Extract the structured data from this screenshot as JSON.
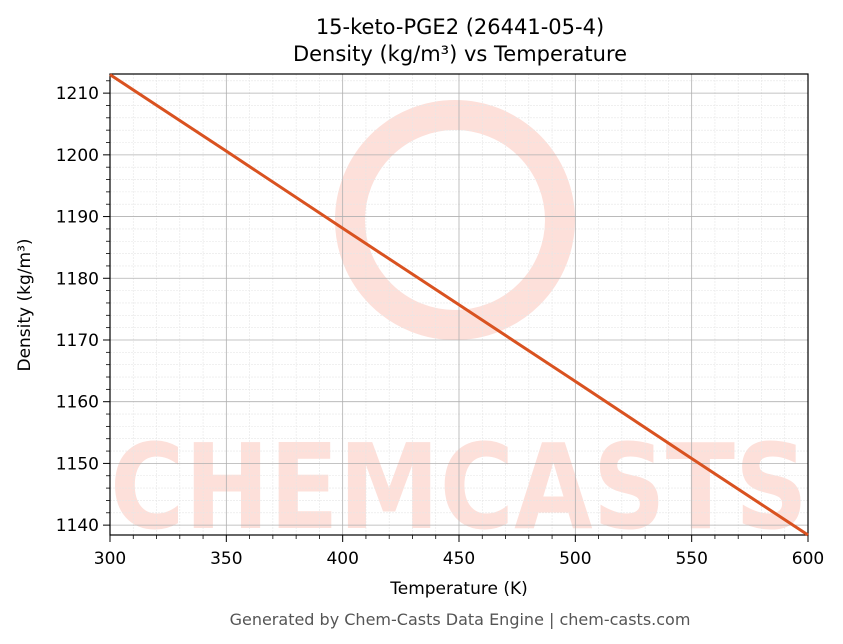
{
  "chart_data": {
    "type": "line",
    "title": "15-keto-PGE2 (26441-05-4)",
    "subtitle": "Density (kg/m³) vs Temperature",
    "x_label": "Temperature (K)",
    "y_label": "Density (kg/m³)",
    "footer": "Generated by Chem-Casts Data Engine | chem-casts.com",
    "watermark": "CHEMCASTS",
    "x": [
      300,
      350,
      400,
      450,
      500,
      550,
      600
    ],
    "series": [
      {
        "name": "Density",
        "color": "#d95220",
        "values": [
          1213.0,
          1200.6,
          1188.1,
          1175.7,
          1163.3,
          1150.8,
          1138.4
        ]
      }
    ],
    "xlim": [
      300,
      600
    ],
    "xticks": [
      300,
      350,
      400,
      450,
      500,
      550,
      600
    ],
    "ylim": [
      1138.4,
      1213.1
    ],
    "yticks": [
      1140,
      1150,
      1160,
      1170,
      1180,
      1190,
      1200,
      1210
    ],
    "grid": true,
    "minor_grid": true
  }
}
